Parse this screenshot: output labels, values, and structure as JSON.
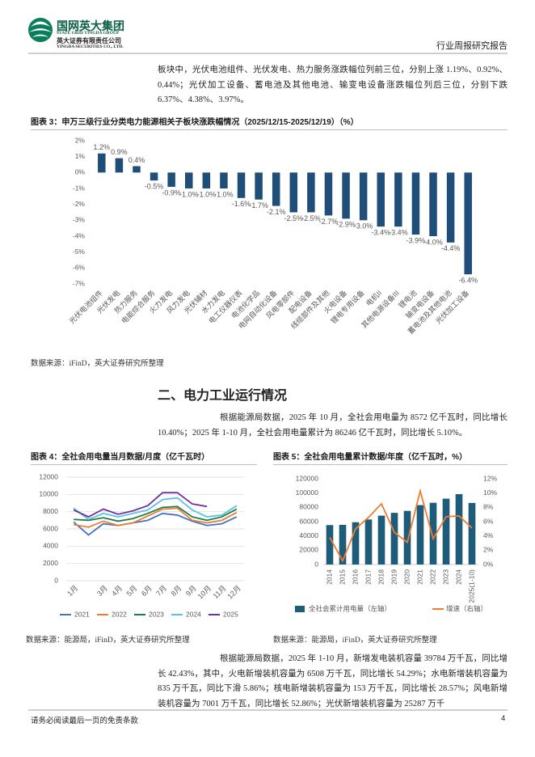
{
  "header": {
    "company_cn": "国网英大集团",
    "company_en": "STATE GRID YINGDA GROUP",
    "securities_cn": "英大证券有限责任公司",
    "securities_en": "YINGDA SECURITIES CO., LTD.",
    "report_type": "行业周报研究报告"
  },
  "paragraphs": [
    "板块中，光伏电池组件、光伏发电、热力服务涨跌幅位列前三位，分别上涨 1.19%、0.92%、0.44%；光伏加工设备、蓄电池及其他电池、输变电设备涨跌幅位列后三位，分别下跌 6.37%、4.38%、3.97%。",
    "根据能源局数据，2025 年 10 月，全社会用电量为 8572 亿千瓦时，同比增长 10.40%；2025 年 1-10 月，全社会用电量累计为 86246 亿千瓦时，同比增长 5.10%。",
    "根据能源局数据，2025 年 1-10 月，新增发电装机容量 39784 万千瓦，同比增长 42.43%，其中，火电新增装机容量为 6508 万千瓦，同比增长 54.29%；水电新增装机容量为 835 万千瓦，同比下滑 5.86%；核电新增装机容量为 153 万千瓦，同比增长 28.57%；风电新增装机容量为 7001 万千瓦，同比增长 52.86%；光伏新增装机容量为 25287 万千"
  ],
  "section_heading": "二、电力工业运行情况",
  "sources": [
    "数据来源：iFinD，英大证券研究所整理",
    "数据来源：能源局，iFinD，英大证券研究所整理",
    "数据来源：能源局，iFinD，英大证券研究所整理"
  ],
  "footer": {
    "disclaimer": "请务必阅读最后一页的免责条款",
    "page_number": 4
  },
  "chart_data": [
    {
      "type": "bar",
      "title": "图表 3：申万三级行业分类电力能源相关子板块涨跌幅情况（2025/12/15-2025/12/19）（%）",
      "categories": [
        "光伏电池组件",
        "光伏发电",
        "热力服务",
        "电能综合服务",
        "火力发电",
        "风力发电",
        "光伏辅材",
        "水力发电",
        "电工仪器仪表",
        "电池化学品",
        "电网自动化设备",
        "风电零部件",
        "配电设备",
        "线缆部件及其他",
        "火电设备",
        "锂电专用设备",
        "电机II",
        "其他电源设备III",
        "锂电池",
        "输变电设备",
        "蓄电池及其他电池",
        "光伏加工设备"
      ],
      "values": [
        1.2,
        0.9,
        0.4,
        -0.5,
        -0.9,
        -1.0,
        -1.0,
        -1.0,
        -1.6,
        -1.7,
        -2.1,
        -2.5,
        -2.5,
        -2.7,
        -2.9,
        -3.0,
        -3.4,
        -3.4,
        -3.9,
        -4.0,
        -4.4,
        -6.4
      ],
      "value_labels": [
        "1.2%",
        "0.9%",
        "0.4%",
        "-0.5%",
        "-0.9%",
        "-1.0%",
        "-1.0%",
        "-1.0%",
        "-1.6%",
        "-1.7%",
        "-2.1%",
        "-2.5%",
        "-2.5%",
        "-2.7%",
        "-2.9%",
        "-3.0%",
        "-3.4%",
        "-3.4%",
        "-3.9%",
        "-4.0%",
        "-4.4%",
        "-6.4%"
      ],
      "color": "#1f4e79",
      "ylim": [
        -7,
        2
      ],
      "yticks": [
        {
          "value": 2,
          "label": "2%"
        },
        {
          "value": 1,
          "label": "1%"
        },
        {
          "value": 0,
          "label": "0%"
        },
        {
          "value": -1,
          "label": "-1%"
        },
        {
          "value": -2,
          "label": "-2%"
        },
        {
          "value": -3,
          "label": "-3%"
        },
        {
          "value": -4,
          "label": "-4%"
        },
        {
          "value": -5,
          "label": "-5%"
        },
        {
          "value": -6,
          "label": "-6%"
        },
        {
          "value": -7,
          "label": "-7%"
        }
      ],
      "grid": false
    },
    {
      "type": "line",
      "title": "图表 4：全社会用电量当月数据/月度（亿千瓦时）",
      "categories": [
        "1月",
        null,
        "3月",
        "4月",
        "5月",
        "6月",
        "7月",
        "8月",
        "9月",
        "10月",
        "11月",
        "12月"
      ],
      "series": [
        {
          "name": "2021",
          "color": "#4472c4",
          "values": [
            6800,
            5300,
            6600,
            6400,
            6700,
            7000,
            7800,
            7600,
            6900,
            6400,
            6600,
            7400
          ]
        },
        {
          "name": "2022",
          "color": "#ed7d31",
          "values": [
            6500,
            6200,
            6900,
            6400,
            6700,
            7500,
            8300,
            8400,
            7000,
            6700,
            7000,
            7900
          ]
        },
        {
          "name": "2023",
          "color": "#1e7b4a",
          "values": [
            7100,
            7000,
            7300,
            6900,
            7200,
            7800,
            8500,
            8600,
            7400,
            7000,
            7400,
            8300
          ]
        },
        {
          "name": "2024",
          "color": "#5bc0e4",
          "values": [
            8400,
            7100,
            7800,
            7400,
            7800,
            8200,
            9400,
            9600,
            8200,
            7400,
            7600,
            8700
          ]
        },
        {
          "name": "2025",
          "color": "#7030a0",
          "values": [
            8200,
            7400,
            8300,
            7700,
            8100,
            8700,
            10200,
            10200,
            8900,
            8600,
            null,
            null
          ]
        }
      ],
      "ylim": [
        0,
        12000
      ],
      "yticks": [
        0,
        2000,
        4000,
        6000,
        8000,
        10000,
        12000
      ],
      "grid": true,
      "legend": "bottom"
    },
    {
      "type": "combo",
      "title": "图表 5：全社会用电量累计数据/年度（亿千瓦时，%）",
      "categories": [
        "2014",
        "2015",
        "2016",
        "2017",
        "2018",
        "2019",
        "2020",
        "2021",
        "2022",
        "2023",
        "2024",
        "2025(1-10)"
      ],
      "series": [
        {
          "name": "全社会累计用电量（左轴）",
          "type": "bar",
          "color": "#1f5c7a",
          "values": [
            55200,
            55500,
            59200,
            63100,
            68400,
            72300,
            75100,
            83100,
            86400,
            92200,
            98500,
            86200
          ]
        },
        {
          "name": "增速（右轴）",
          "type": "line",
          "axis": "y2",
          "color": "#ed7d31",
          "values": [
            3.8,
            0.5,
            5.0,
            6.6,
            8.5,
            4.5,
            3.1,
            10.3,
            3.6,
            6.7,
            6.8,
            5.1
          ]
        }
      ],
      "ylim": [
        0,
        120000
      ],
      "yticks": [
        0,
        20000,
        40000,
        60000,
        80000,
        100000,
        120000
      ],
      "y2lim": [
        0,
        12
      ],
      "y2ticks": [
        {
          "value": 0,
          "label": "0%"
        },
        {
          "value": 2,
          "label": "2%"
        },
        {
          "value": 4,
          "label": "4%"
        },
        {
          "value": 6,
          "label": "6%"
        },
        {
          "value": 8,
          "label": "8%"
        },
        {
          "value": 10,
          "label": "10%"
        },
        {
          "value": 12,
          "label": "12%"
        }
      ],
      "grid": false,
      "legend": "bottom"
    }
  ]
}
